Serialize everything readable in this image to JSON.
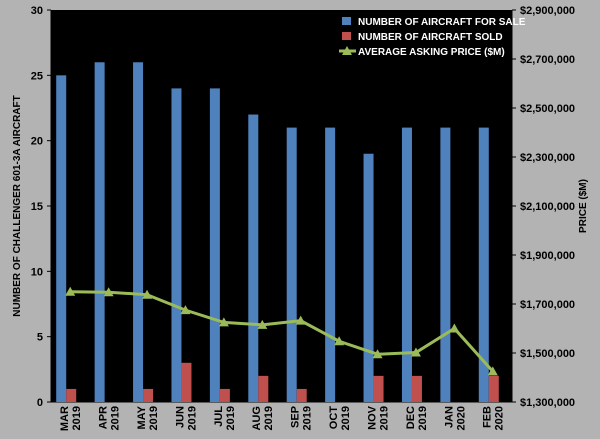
{
  "chart_data": {
    "type": "bar",
    "title": "",
    "categories": [
      [
        "MAR",
        "2019"
      ],
      [
        "APR",
        "2019"
      ],
      [
        "MAY",
        "2019"
      ],
      [
        "JUN",
        "2019"
      ],
      [
        "JUL",
        "2019"
      ],
      [
        "AUG",
        "2019"
      ],
      [
        "SEP",
        "2019"
      ],
      [
        "OCT",
        "2019"
      ],
      [
        "NOV",
        "2019"
      ],
      [
        "DEC",
        "2019"
      ],
      [
        "JAN",
        "2020"
      ],
      [
        "FEB",
        "2020"
      ]
    ],
    "series": [
      {
        "name": "NUMBER OF AIRCRAFT FOR SALE",
        "type": "bar",
        "axis": "left",
        "color": "#4f81bd",
        "values": [
          25,
          26,
          26,
          24,
          24,
          22,
          21,
          21,
          19,
          21,
          21,
          21
        ]
      },
      {
        "name": "NUMBER OF AIRCRAFT SOLD",
        "type": "bar",
        "axis": "left",
        "color": "#c0504d",
        "values": [
          1,
          0,
          1,
          3,
          1,
          2,
          1,
          0,
          2,
          2,
          0,
          2
        ]
      },
      {
        "name": "AVERAGE ASKING PRICE ($M)",
        "type": "line",
        "axis": "right",
        "color": "#9bbb59",
        "values": [
          1750000,
          1748000,
          1738000,
          1675000,
          1625000,
          1615000,
          1632000,
          1548000,
          1495000,
          1502000,
          1600000,
          1425000
        ]
      }
    ],
    "ylabel": "NUMBER OF CHALLENGER 601-3A  AIRCRAFT",
    "y2label": "PRICE ($M)",
    "ylim": [
      0,
      30
    ],
    "y2lim": [
      1300000,
      2900000
    ],
    "yticks": [
      "0",
      "5",
      "10",
      "15",
      "20",
      "25",
      "30"
    ],
    "y2ticks": [
      "$1,300,000",
      "$1,500,000",
      "$1,700,000",
      "$1,900,000",
      "$2,100,000",
      "$2,300,000",
      "$2,500,000",
      "$2,700,000",
      "$2,900,000"
    ],
    "grid": false,
    "legend_position": "top-right",
    "plot_background": "#000000"
  }
}
